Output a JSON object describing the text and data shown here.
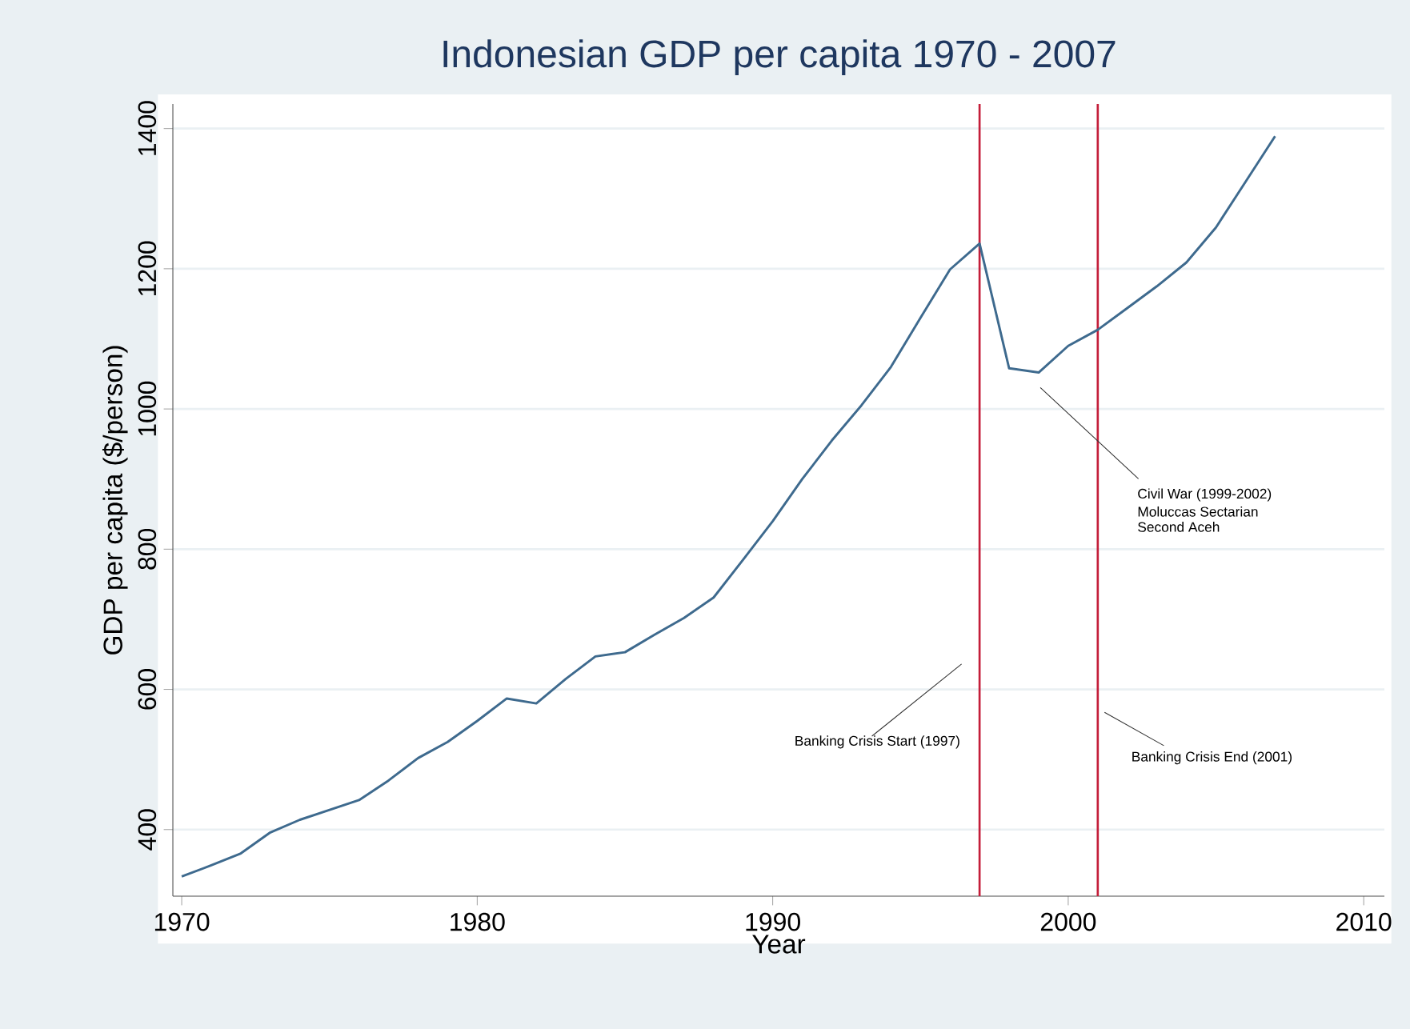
{
  "chart_data": {
    "type": "line",
    "title": "Indonesian GDP per capita 1970 - 2007",
    "xlabel": "Year",
    "ylabel": "GDP per capita ($/person)",
    "x": [
      1970,
      1971,
      1972,
      1973,
      1974,
      1975,
      1976,
      1977,
      1978,
      1979,
      1980,
      1981,
      1982,
      1983,
      1984,
      1985,
      1986,
      1987,
      1988,
      1989,
      1990,
      1991,
      1992,
      1993,
      1994,
      1995,
      1996,
      1997,
      1998,
      1999,
      2000,
      2001,
      2002,
      2003,
      2004,
      2005,
      2006,
      2007
    ],
    "series": [
      {
        "color": "#3e6a8e",
        "values": [
          333,
          349,
          366,
          396,
          414,
          428,
          442,
          470,
          502,
          525,
          555,
          587,
          580,
          615,
          647,
          653,
          678,
          702,
          731,
          785,
          840,
          900,
          955,
          1005,
          1060,
          1130,
          1199,
          1236,
          1058,
          1052,
          1090,
          1113,
          1144,
          1175,
          1209,
          1259,
          1324,
          1389
        ]
      }
    ],
    "xlim": [
      1969.7,
      2010.7
    ],
    "ylim": [
      305,
      1435
    ],
    "xticks": [
      1970,
      1980,
      1990,
      2000,
      2010
    ],
    "yticks": [
      400,
      600,
      800,
      1000,
      1200,
      1400
    ],
    "grid": "y",
    "marker": "none",
    "line_style": "solid",
    "ref_lines": [
      {
        "axis": "x",
        "value": 1997,
        "color": "#c41e3a"
      },
      {
        "axis": "x",
        "value": 2001,
        "color": "#c41e3a"
      }
    ],
    "annotations": [
      "Civil War (1999-2002)",
      "Moluccas Sectarian",
      "Second Aceh",
      "Banking Crisis Start (1997)",
      "Banking Crisis End (2001)"
    ]
  }
}
